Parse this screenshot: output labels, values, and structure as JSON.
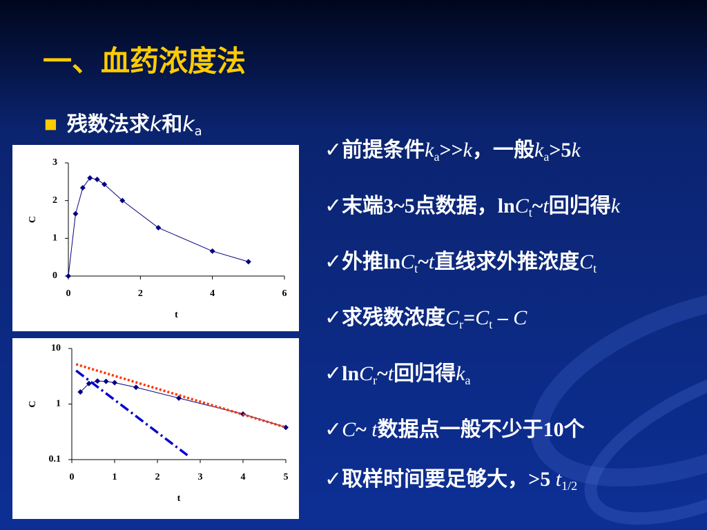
{
  "title": "一、血药浓度法",
  "bullet": {
    "marker": "■",
    "segments": [
      {
        "text": "残数法求"
      },
      {
        "text": "k",
        "style": "italic"
      },
      {
        "text": "和"
      },
      {
        "text": "k",
        "style": "italic"
      },
      {
        "text": "a",
        "style": "sub"
      }
    ]
  },
  "points": [
    [
      {
        "text": "✓前提条件"
      },
      {
        "text": "k",
        "style": "italic"
      },
      {
        "text": "a",
        "style": "sub"
      },
      {
        "text": ">>"
      },
      {
        "text": "k",
        "style": "italic"
      },
      {
        "text": "，一般"
      },
      {
        "text": "k",
        "style": "italic"
      },
      {
        "text": "a",
        "style": "sub"
      },
      {
        "text": ">5"
      },
      {
        "text": "k",
        "style": "italic"
      }
    ],
    [
      {
        "text": "✓末端3~5点数据，ln"
      },
      {
        "text": "C",
        "style": "italic"
      },
      {
        "text": "t",
        "style": "sub"
      },
      {
        "text": "~"
      },
      {
        "text": "t",
        "style": "italic"
      },
      {
        "text": "回归得"
      },
      {
        "text": "k",
        "style": "italic"
      }
    ],
    [
      {
        "text": "✓外推ln"
      },
      {
        "text": "C",
        "style": "italic"
      },
      {
        "text": "t",
        "style": "sub"
      },
      {
        "text": "~"
      },
      {
        "text": "t",
        "style": "italic"
      },
      {
        "text": "直线求外推浓度"
      },
      {
        "text": "C",
        "style": "italic"
      },
      {
        "text": "t",
        "style": "sub"
      }
    ],
    [
      {
        "text": "✓求残数浓度"
      },
      {
        "text": "C",
        "style": "italic"
      },
      {
        "text": "r",
        "style": "sub"
      },
      {
        "text": "="
      },
      {
        "text": "C",
        "style": "italic"
      },
      {
        "text": "t",
        "style": "sub"
      },
      {
        "text": " – "
      },
      {
        "text": "C",
        "style": "italic"
      }
    ],
    [
      {
        "text": "✓ln"
      },
      {
        "text": "C",
        "style": "italic"
      },
      {
        "text": "r",
        "style": "sub"
      },
      {
        "text": "~"
      },
      {
        "text": "t",
        "style": "italic"
      },
      {
        "text": "回归得"
      },
      {
        "text": "k",
        "style": "italic"
      },
      {
        "text": "a",
        "style": "sub"
      }
    ],
    [
      {
        "text": "✓"
      },
      {
        "text": "C",
        "style": "italic"
      },
      {
        "text": "~ "
      },
      {
        "text": "t",
        "style": "italic"
      },
      {
        "text": "数据点一般不少于10个"
      }
    ],
    [
      {
        "text": "✓取样时间要足够大，>5 "
      },
      {
        "text": "t",
        "style": "italic"
      },
      {
        "text": "1/2",
        "style": "sub"
      }
    ]
  ],
  "chart_data": [
    {
      "type": "line",
      "xlabel": "t",
      "ylabel": "C",
      "series": [
        {
          "color": "#000080",
          "markers": true,
          "dash": "solid",
          "x": [
            0,
            0.2,
            0.4,
            0.6,
            0.8,
            1,
            1.5,
            2.5,
            4,
            5
          ],
          "values": [
            0,
            1.65,
            2.34,
            2.6,
            2.56,
            2.43,
            2.0,
            1.28,
            0.66,
            0.38
          ]
        }
      ],
      "xlim": [
        0,
        6
      ],
      "xticks": [
        0,
        2,
        4,
        6
      ],
      "ylim": [
        0,
        3
      ],
      "yticks": [
        0,
        1,
        2,
        3
      ]
    },
    {
      "type": "line",
      "xlabel": "t",
      "ylabel": "C",
      "yscale": "log",
      "series": [
        {
          "color": "#000080",
          "markers": true,
          "dash": "solid",
          "x": [
            0.2,
            0.4,
            0.6,
            0.8,
            1,
            1.5,
            2.5,
            4,
            5
          ],
          "values": [
            1.65,
            2.34,
            2.6,
            2.56,
            2.43,
            2.0,
            1.28,
            0.66,
            0.38
          ]
        },
        {
          "color": "#ff3300",
          "markers": false,
          "dash": "dotted",
          "x": [
            0.1,
            5
          ],
          "values": [
            5.2,
            0.38
          ]
        },
        {
          "color": "#0000cc",
          "markers": false,
          "dash": "dash-dot",
          "x": [
            0.1,
            2.7
          ],
          "values": [
            4.0,
            0.12
          ]
        }
      ],
      "xlim": [
        0,
        5
      ],
      "xticks": [
        0,
        1,
        2,
        3,
        4,
        5
      ],
      "ylim": [
        0.1,
        10
      ],
      "yticks": [
        0.1,
        1,
        10
      ]
    }
  ]
}
